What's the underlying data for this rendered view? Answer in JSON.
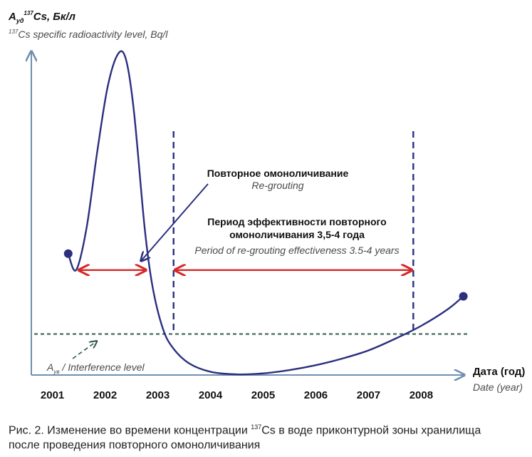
{
  "chart_data": {
    "type": "line",
    "ylabel_ru_symbol": "A",
    "ylabel_ru_sub": "уд",
    "ylabel_ru_sup": "137",
    "ylabel_ru_rest": "Cs, Бк/л",
    "ylabel_en_sup": "137",
    "ylabel_en_rest": "Cs specific radioactivity level, Bq/l",
    "xlabel_ru": "Дата (год)",
    "xlabel_en": "Date (year)",
    "x_ticks": [
      "2001",
      "2002",
      "2003",
      "2004",
      "2005",
      "2006",
      "2007",
      "2008"
    ],
    "xlim": [
      2000.6,
      2008.9
    ],
    "ylim": [
      0,
      100
    ],
    "series": [
      {
        "x": [
          2001.3,
          2001.45,
          2001.65,
          2001.85,
          2002.05,
          2002.25,
          2002.4,
          2002.55,
          2002.75,
          2002.9,
          2003.1,
          2003.3,
          2003.6,
          2004.0,
          2004.5,
          2005.0,
          2005.5,
          2006.0,
          2006.5,
          2007.0,
          2007.5,
          2008.0,
          2008.5,
          2008.8
        ],
        "y": [
          37,
          32,
          45,
          68,
          88,
          98,
          96,
          80,
          45,
          27,
          14,
          8,
          3.5,
          1,
          0.2,
          0.5,
          1.5,
          3,
          5,
          7.5,
          11,
          15,
          20,
          24
        ]
      }
    ],
    "endpoints": [
      {
        "x": 2001.3,
        "y": 37
      },
      {
        "x": 2008.8,
        "y": 24
      }
    ],
    "interference_level_y": 12.5,
    "interference_label_sub": "ув",
    "interference_label_rest": " / Interference level",
    "interference_label_symbol": "A",
    "dashed_verticals_x": [
      2003.3,
      2007.85
    ],
    "regrout_span": {
      "x0": 2001.45,
      "x1": 2002.8
    },
    "effect_span": {
      "x0": 2003.3,
      "x1": 2007.85
    },
    "span_arrow_y": 32,
    "regrout_label_ru": "Повторное омоноличивание",
    "regrout_label_en": "Re-grouting",
    "effect_label_ru_1": "Период эффективности повторного",
    "effect_label_ru_2": "омоноличивания 3,5-4 года",
    "effect_label_en": "Period of re-grouting effectiveness 3.5-4 years",
    "colors": {
      "curve": "#2b2f7e",
      "axis": "#6f8fb0",
      "dashed_vertical": "#2b2f7e",
      "interference": "#2f5a4e",
      "span_arrow": "#d62828",
      "pointer_arrow": "#2b2f7e",
      "label_en": "#4a4a4a"
    }
  },
  "caption_prefix": "Рис. 2. Изменение во времени концентрации ",
  "caption_sup": "137",
  "caption_line1_rest": "Cs в воде приконтурной зоны хранилища",
  "caption_line2": "после проведения повторного омоноличивания"
}
